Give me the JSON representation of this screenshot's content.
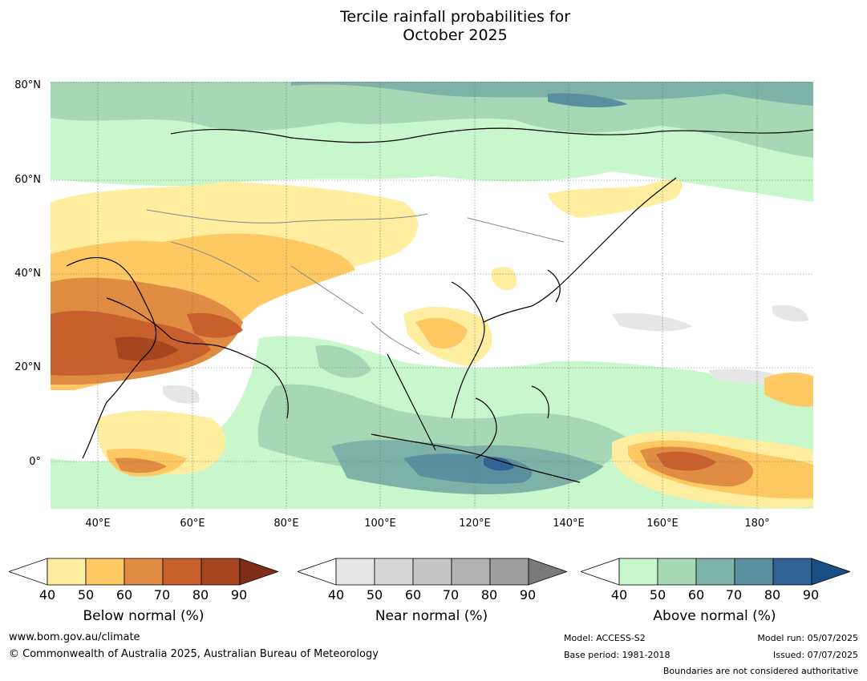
{
  "title_line1": "Tercile rainfall probabilities for",
  "title_line2": "October 2025",
  "map": {
    "lat_labels": [
      "80°N",
      "60°N",
      "40°N",
      "20°N",
      "0°"
    ],
    "lon_labels": [
      "40°E",
      "60°E",
      "80°E",
      "100°E",
      "120°E",
      "140°E",
      "160°E",
      "180°"
    ]
  },
  "colorbars": [
    {
      "name": "Below normal (%)",
      "ticks": [
        "40",
        "50",
        "60",
        "70",
        "80",
        "90"
      ],
      "colors": [
        "#ffeda0",
        "#fec962",
        "#e08c42",
        "#c8602e",
        "#a74521"
      ],
      "extend_color": "#7e2d16"
    },
    {
      "name": "Near normal (%)",
      "ticks": [
        "40",
        "50",
        "60",
        "70",
        "80",
        "90"
      ],
      "colors": [
        "#e6e6e6",
        "#d6d6d6",
        "#c6c6c6",
        "#b2b2b2",
        "#9e9e9e"
      ],
      "extend_color": "#7a7a7a"
    },
    {
      "name": "Above normal (%)",
      "ticks": [
        "40",
        "50",
        "60",
        "70",
        "80",
        "90"
      ],
      "colors": [
        "#c8f7cc",
        "#a7d8b6",
        "#7fb2a6",
        "#5a8fa0",
        "#306293"
      ],
      "extend_color": "#174f85"
    }
  ],
  "footer": {
    "site": "www.bom.gov.au/climate",
    "copyright": "© Commonwealth of Australia 2025, Australian Bureau of Meteorology",
    "model": "Model: ACCESS-S2",
    "base_period": "Base period: 1981-2018",
    "model_run": "Model run: 05/07/2025",
    "issued": "Issued: 07/07/2025",
    "disclaimer": "Boundaries are not considered authoritative"
  }
}
